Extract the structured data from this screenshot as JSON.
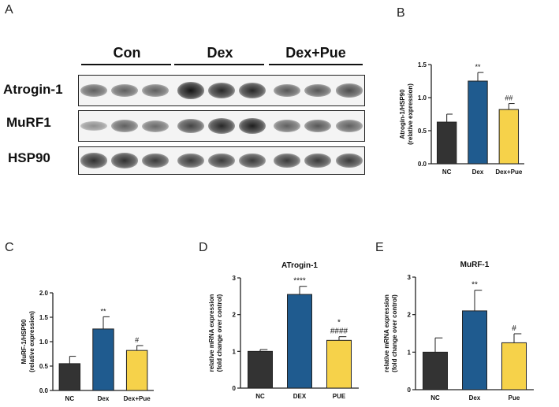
{
  "panel_labels": {
    "a": "A",
    "b": "B",
    "c": "C",
    "d": "D",
    "e": "E"
  },
  "western_blot": {
    "groups": [
      "Con",
      "Dex",
      "Dex+Pue"
    ],
    "rows": [
      {
        "label": "Atrogin-1",
        "intensities": [
          0.55,
          0.55,
          0.55,
          0.95,
          0.85,
          0.85,
          0.6,
          0.6,
          0.65
        ]
      },
      {
        "label": "MuRF1",
        "intensities": [
          0.3,
          0.55,
          0.5,
          0.7,
          0.85,
          0.9,
          0.55,
          0.6,
          0.55
        ]
      },
      {
        "label": "HSP90",
        "intensities": [
          0.8,
          0.8,
          0.75,
          0.75,
          0.75,
          0.75,
          0.75,
          0.75,
          0.75
        ]
      }
    ]
  },
  "chart_data": [
    {
      "id": "B",
      "type": "bar",
      "categories": [
        "NC",
        "Dex",
        "Dex+Pue"
      ],
      "values": [
        0.63,
        1.25,
        0.82
      ],
      "errors": [
        0.12,
        0.13,
        0.09
      ],
      "annotations": [
        "",
        "**",
        "##"
      ],
      "ylabel": "Atrogin-1/HSP90 (relative expression)",
      "ylabel_lines": [
        "Atrogin-1/HSP90",
        "(relative expression)"
      ],
      "ylim": [
        0,
        1.5
      ],
      "yticks": [
        "0.0",
        "0.5",
        "1.0",
        "1.5"
      ],
      "title": ""
    },
    {
      "id": "C",
      "type": "bar",
      "categories": [
        "NC",
        "Dex",
        "Dex+Pue"
      ],
      "values": [
        0.55,
        1.26,
        0.82
      ],
      "errors": [
        0.15,
        0.25,
        0.1
      ],
      "annotations": [
        "",
        "**",
        "#"
      ],
      "ylabel": "MuRF-1/HSP90 (relative expression)",
      "ylabel_lines": [
        "MuRF-1/HSP90",
        "(relative expression)"
      ],
      "ylim": [
        0,
        2.0
      ],
      "yticks": [
        "0.0",
        "0.5",
        "1.0",
        "1.5",
        "2.0"
      ],
      "title": ""
    },
    {
      "id": "D",
      "type": "bar",
      "categories": [
        "NC",
        "DEX",
        "PUE"
      ],
      "values": [
        1.0,
        2.55,
        1.3
      ],
      "errors": [
        0.05,
        0.22,
        0.1
      ],
      "annotations": [
        "",
        "****",
        "*\n####"
      ],
      "ylabel": "relative mRNA expression (fold change over control)",
      "ylabel_lines": [
        "relative mRNA expression",
        "(fold change over control)"
      ],
      "ylim": [
        0,
        3
      ],
      "yticks": [
        "0",
        "1",
        "2",
        "3"
      ],
      "title": "ATrogin-1"
    },
    {
      "id": "E",
      "type": "bar",
      "categories": [
        "NC",
        "Dex",
        "Pue"
      ],
      "values": [
        1.0,
        2.1,
        1.25
      ],
      "errors": [
        0.38,
        0.55,
        0.24
      ],
      "annotations": [
        "",
        "**",
        "#"
      ],
      "ylabel": "relative mRNA expression (fold change over control)",
      "ylabel_lines": [
        "relative mRNA expression",
        "(fold change over control)"
      ],
      "ylim": [
        0,
        3
      ],
      "yticks": [
        "0",
        "1",
        "2",
        "3"
      ],
      "title": "MuRF-1"
    }
  ],
  "colors": {
    "NC": "#333333",
    "treated": "#1f5b8f",
    "rescue": "#f6d24a",
    "axis": "#222222"
  }
}
